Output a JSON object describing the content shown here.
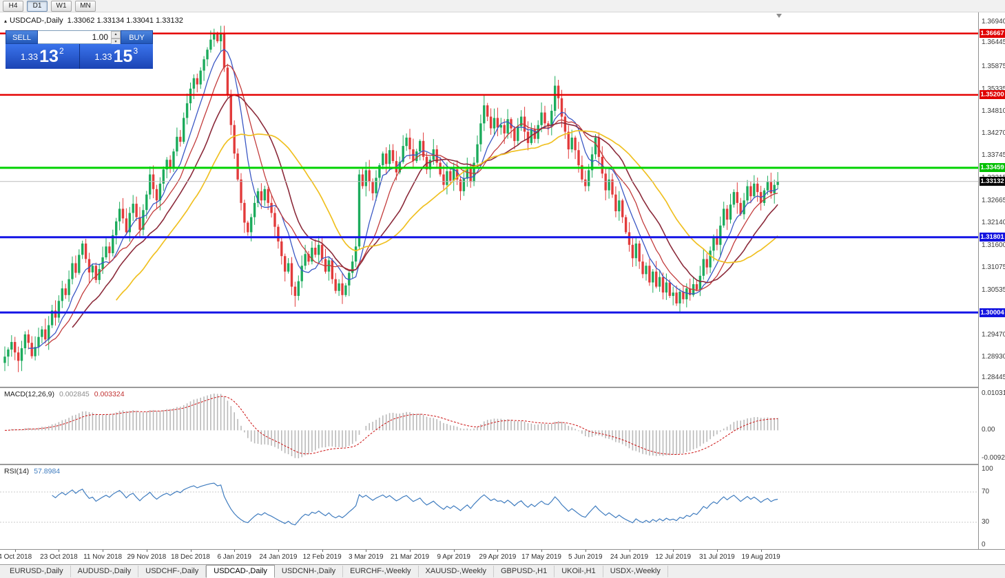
{
  "toolbar": {
    "timeframes": [
      {
        "label": "H4",
        "active": false
      },
      {
        "label": "D1",
        "active": true
      },
      {
        "label": "W1",
        "active": false
      },
      {
        "label": "MN",
        "active": false
      }
    ]
  },
  "chart": {
    "symbol_title": "USDCAD-,Daily",
    "ohlc_text": "1.33062 1.33134 1.33041 1.33132"
  },
  "one_click": {
    "sell_label": "SELL",
    "buy_label": "BUY",
    "volume": "1.00",
    "sell_price": {
      "small": "1.33",
      "big": "13",
      "sup": "2"
    },
    "buy_price": {
      "small": "1.33",
      "big": "15",
      "sup": "3"
    }
  },
  "price_axis": {
    "min": 1.28445,
    "max": 1.3694,
    "labels": [
      {
        "text": "1.36940",
        "price": 1.3694
      },
      {
        "text": "1.36445",
        "price": 1.36445
      },
      {
        "text": "1.35875",
        "price": 1.35875
      },
      {
        "text": "1.35335",
        "price": 1.35335
      },
      {
        "text": "1.34810",
        "price": 1.3481
      },
      {
        "text": "1.34270",
        "price": 1.3427
      },
      {
        "text": "1.33745",
        "price": 1.33745
      },
      {
        "text": "1.33215",
        "price": 1.33215
      },
      {
        "text": "1.32665",
        "price": 1.32665
      },
      {
        "text": "1.32140",
        "price": 1.3214
      },
      {
        "text": "1.31600",
        "price": 1.316
      },
      {
        "text": "1.31075",
        "price": 1.31075
      },
      {
        "text": "1.30535",
        "price": 1.30535
      },
      {
        "text": "1.29470",
        "price": 1.2947
      },
      {
        "text": "1.28930",
        "price": 1.2893
      },
      {
        "text": "1.28445",
        "price": 1.28445
      }
    ],
    "badges": [
      {
        "text": "1.36667",
        "price": 1.36667,
        "bg": "#e00000"
      },
      {
        "text": "1.35200",
        "price": 1.352,
        "bg": "#e00000"
      },
      {
        "text": "1.33459",
        "price": 1.33459,
        "bg": "#00c000"
      },
      {
        "text": "1.33132",
        "price": 1.33132,
        "bg": "#000000"
      },
      {
        "text": "1.31801",
        "price": 1.31801,
        "bg": "#1414e0"
      },
      {
        "text": "1.30004",
        "price": 1.30004,
        "bg": "#1414e0"
      }
    ]
  },
  "chart_data": {
    "type": "candlestick",
    "symbol": "USDCAD",
    "timeframe": "Daily",
    "current_price": 1.33132,
    "ohlc_current": {
      "open": 1.33062,
      "high": 1.33134,
      "low": 1.33041,
      "close": 1.33132
    },
    "price_range": [
      1.28445,
      1.3694
    ],
    "x_labels": [
      "4 Oct 2018",
      "23 Oct 2018",
      "11 Nov 2018",
      "29 Nov 2018",
      "18 Dec 2018",
      "6 Jan 2019",
      "24 Jan 2019",
      "12 Feb 2019",
      "3 Mar 2019",
      "21 Mar 2019",
      "9 Apr 2019",
      "29 Apr 2019",
      "17 May 2019",
      "5 Jun 2019",
      "24 Jun 2019",
      "12 Jul 2019",
      "31 Jul 2019",
      "19 Aug 2019"
    ],
    "colors": {
      "up": "#1cab5c",
      "down": "#e23b3b"
    },
    "candles": {
      "first_open": 1.288,
      "closes": [
        1.2895,
        1.2912,
        1.293,
        1.2905,
        1.2885,
        1.2915,
        1.2948,
        1.2928,
        1.2896,
        1.2918,
        1.2942,
        1.296,
        1.2936,
        1.297,
        1.3005,
        1.2988,
        1.3028,
        1.3058,
        1.3042,
        1.308,
        1.3118,
        1.3095,
        1.3138,
        1.3165,
        1.3128,
        1.3096,
        1.3112,
        1.3078,
        1.3104,
        1.3132,
        1.3158,
        1.3142,
        1.3185,
        1.3218,
        1.3248,
        1.3225,
        1.3192,
        1.3238,
        1.326,
        1.3228,
        1.3198,
        1.3245,
        1.3282,
        1.333,
        1.3295,
        1.3268,
        1.3308,
        1.3342,
        1.3365,
        1.3348,
        1.3385,
        1.342,
        1.3408,
        1.3465,
        1.35,
        1.3535,
        1.356,
        1.3545,
        1.3578,
        1.3605,
        1.3628,
        1.3652,
        1.3665,
        1.3648,
        1.3668,
        1.3585,
        1.352,
        1.3448,
        1.338,
        1.3318,
        1.3262,
        1.3215,
        1.3192,
        1.3228,
        1.3262,
        1.329,
        1.3268,
        1.3295,
        1.3262,
        1.3238,
        1.3205,
        1.317,
        1.3135,
        1.3098,
        1.3118,
        1.3062,
        1.304,
        1.3075,
        1.3112,
        1.314,
        1.3122,
        1.3155,
        1.3138,
        1.3162,
        1.3128,
        1.3098,
        1.3125,
        1.308,
        1.3052,
        1.307,
        1.3042,
        1.3065,
        1.3095,
        1.3122,
        1.3158,
        1.333,
        1.3302,
        1.334,
        1.3312,
        1.3285,
        1.3322,
        1.3352,
        1.338,
        1.3355,
        1.3388,
        1.3362,
        1.3335,
        1.336,
        1.3398,
        1.3418,
        1.339,
        1.3362,
        1.3385,
        1.341,
        1.3372,
        1.3342,
        1.3365,
        1.339,
        1.3358,
        1.333,
        1.3305,
        1.3338,
        1.3315,
        1.3342,
        1.3318,
        1.329,
        1.332,
        1.3348,
        1.3312,
        1.3358,
        1.3402,
        1.3452,
        1.3495,
        1.3468,
        1.344,
        1.3465,
        1.3442,
        1.3448,
        1.3428,
        1.3462,
        1.344,
        1.341,
        1.3445,
        1.3468,
        1.3432,
        1.3405,
        1.3438,
        1.3415,
        1.3448,
        1.3478,
        1.3452,
        1.3445,
        1.3482,
        1.3542,
        1.3512,
        1.3468,
        1.3432,
        1.339,
        1.3418,
        1.3388,
        1.3352,
        1.3318,
        1.3302,
        1.334,
        1.3378,
        1.3418,
        1.3372,
        1.3332,
        1.3292,
        1.3318,
        1.3282,
        1.3242,
        1.3268,
        1.3228,
        1.3192,
        1.3162,
        1.313,
        1.3165,
        1.3122,
        1.3092,
        1.3112,
        1.3072,
        1.3098,
        1.3062,
        1.3085,
        1.3048,
        1.3072,
        1.304,
        1.3048,
        1.3022,
        1.305,
        1.3032,
        1.3058,
        1.3042,
        1.3068,
        1.3055,
        1.3088,
        1.3128,
        1.3108,
        1.3148,
        1.3178,
        1.3162,
        1.3208,
        1.3248,
        1.3222,
        1.3258,
        1.3288,
        1.3262,
        1.3235,
        1.3268,
        1.3302,
        1.3278,
        1.3308,
        1.3288,
        1.3262,
        1.3292,
        1.3312,
        1.3285,
        1.3305,
        1.3313
      ],
      "extremes": {
        "4": {
          "l": 1.2858
        },
        "23": {
          "h": 1.3172
        },
        "62": {
          "h": 1.3678
        },
        "64": {
          "h": 1.3685
        },
        "105": {
          "l": 1.315
        },
        "142": {
          "h": 1.3521
        },
        "163": {
          "h": 1.3565
        },
        "199": {
          "l": 1.3016
        }
      }
    },
    "moving_averages": [
      {
        "period": 8,
        "color": "#3a57c4",
        "width": 1.3
      },
      {
        "period": 13,
        "color": "#c23b3b",
        "width": 1.3
      },
      {
        "period": 21,
        "color": "#8b2a3a",
        "width": 1.6
      },
      {
        "period": 34,
        "color": "#f0c020",
        "width": 1.7
      }
    ],
    "horizontal_levels": [
      {
        "price": 1.36667,
        "color": "#e40000",
        "width": 2.5
      },
      {
        "price": 1.352,
        "color": "#e40000",
        "width": 2.5
      },
      {
        "price": 1.33459,
        "color": "#00d200",
        "width": 3
      },
      {
        "price": 1.31801,
        "color": "#1414e6",
        "width": 3
      },
      {
        "price": 1.30004,
        "color": "#1414e6",
        "width": 3
      }
    ],
    "indicators": {
      "macd": {
        "label": "MACD(12,26,9)",
        "fast": 12,
        "slow": 26,
        "signal": 9,
        "value_main": "0.002845",
        "value_signal": "0.003324",
        "axis_top": "0.010311",
        "axis_zero": "0.00",
        "axis_bottom": "-0.009203"
      },
      "rsi": {
        "label": "RSI(14)",
        "period": 14,
        "value": "57.8984",
        "levels": [
          70,
          30
        ],
        "axis": [
          {
            "text": "100",
            "value": 100
          },
          {
            "text": "70",
            "value": 70
          },
          {
            "text": "30",
            "value": 30
          },
          {
            "text": "0",
            "value": 0
          }
        ]
      }
    }
  },
  "bottom_tabs": {
    "active_index": 3,
    "tabs": [
      "EURUSD-,Daily",
      "AUDUSD-,Daily",
      "USDCHF-,Daily",
      "USDCAD-,Daily",
      "USDCNH-,Daily",
      "EURCHF-,Weekly",
      "XAUUSD-,Weekly",
      "GBPUSD-,H1",
      "UKOil-,H1",
      "USDX-,Weekly"
    ]
  }
}
